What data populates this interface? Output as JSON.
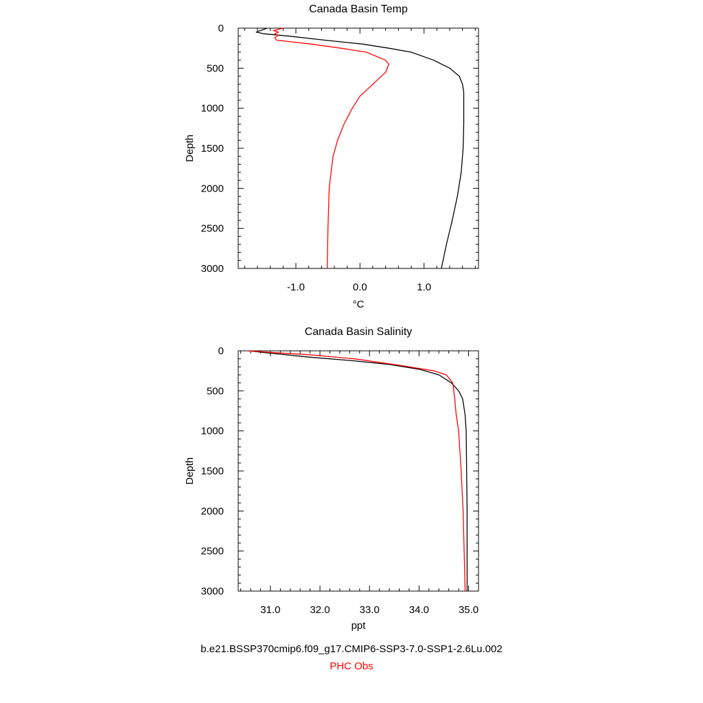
{
  "colors": {
    "model": "#000000",
    "obs": "#ff0000",
    "axis": "#000000",
    "background": "#ffffff"
  },
  "legend": {
    "model_label": "b.e21.BSSP370cmip6.f09_g17.CMIP6-SSP3-7.0-SSP1-2.6Lu.002",
    "obs_label": "PHC Obs"
  },
  "chart_data": [
    {
      "type": "line",
      "title": "Canada Basin Temp",
      "xlabel": "°C",
      "ylabel": "Depth",
      "xlim": [
        -1.9,
        1.85
      ],
      "ylim": [
        3000,
        0
      ],
      "xticks": [
        -1.0,
        0.0,
        1.0
      ],
      "xtick_labels": [
        "-1.0",
        "0.0",
        "1.0"
      ],
      "yticks": [
        0,
        500,
        1000,
        1500,
        2000,
        2500,
        3000
      ],
      "ytick_labels": [
        "0",
        "500",
        "1000",
        "1500",
        "2000",
        "2500",
        "3000"
      ],
      "grid": false,
      "series": [
        {
          "name": "b.e21.BSSP370cmip6.f09_g17.CMIP6-SSP3-7.0-SSP1-2.6Lu.002",
          "color": "#000000",
          "points": [
            [
              -1.45,
              0
            ],
            [
              -1.62,
              50
            ],
            [
              -1.5,
              70
            ],
            [
              -1.1,
              100
            ],
            [
              -0.55,
              150
            ],
            [
              0.05,
              200
            ],
            [
              0.45,
              250
            ],
            [
              0.8,
              300
            ],
            [
              1.15,
              400
            ],
            [
              1.4,
              500
            ],
            [
              1.55,
              600
            ],
            [
              1.6,
              700
            ],
            [
              1.62,
              800
            ],
            [
              1.62,
              1000
            ],
            [
              1.62,
              1200
            ],
            [
              1.61,
              1500
            ],
            [
              1.58,
              1800
            ],
            [
              1.52,
              2100
            ],
            [
              1.44,
              2400
            ],
            [
              1.35,
              2700
            ],
            [
              1.27,
              3000
            ]
          ]
        },
        {
          "name": "PHC Obs",
          "color": "#ff0000",
          "points": [
            [
              -1.2,
              0
            ],
            [
              -1.35,
              30
            ],
            [
              -1.27,
              50
            ],
            [
              -1.33,
              70
            ],
            [
              -1.28,
              90
            ],
            [
              -1.33,
              120
            ],
            [
              -1.3,
              150
            ],
            [
              -0.75,
              200
            ],
            [
              -0.3,
              250
            ],
            [
              0.1,
              300
            ],
            [
              0.4,
              400
            ],
            [
              0.45,
              450
            ],
            [
              0.4,
              550
            ],
            [
              0.2,
              700
            ],
            [
              0.0,
              850
            ],
            [
              -0.12,
              1000
            ],
            [
              -0.25,
              1200
            ],
            [
              -0.35,
              1400
            ],
            [
              -0.42,
              1600
            ],
            [
              -0.45,
              1800
            ],
            [
              -0.48,
              2000
            ],
            [
              -0.5,
              2500
            ],
            [
              -0.51,
              3000
            ]
          ]
        }
      ]
    },
    {
      "type": "line",
      "title": "Canada Basin Salinity",
      "xlabel": "ppt",
      "ylabel": "Depth",
      "xlim": [
        30.35,
        35.2
      ],
      "ylim": [
        3000,
        0
      ],
      "xticks": [
        31.0,
        32.0,
        33.0,
        34.0,
        35.0
      ],
      "xtick_labels": [
        "31.0",
        "32.0",
        "33.0",
        "34.0",
        "35.0"
      ],
      "yticks": [
        0,
        500,
        1000,
        1500,
        2000,
        2500,
        3000
      ],
      "ytick_labels": [
        "0",
        "500",
        "1000",
        "1500",
        "2000",
        "2500",
        "3000"
      ],
      "grid": false,
      "series": [
        {
          "name": "b.e21.BSSP370cmip6.f09_g17.CMIP6-SSP3-7.0-SSP1-2.6Lu.002",
          "color": "#000000",
          "points": [
            [
              30.55,
              0
            ],
            [
              31.0,
              30
            ],
            [
              31.8,
              80
            ],
            [
              32.6,
              120
            ],
            [
              33.4,
              170
            ],
            [
              34.0,
              230
            ],
            [
              34.4,
              300
            ],
            [
              34.65,
              400
            ],
            [
              34.8,
              500
            ],
            [
              34.88,
              600
            ],
            [
              34.93,
              800
            ],
            [
              34.95,
              1000
            ],
            [
              34.96,
              1500
            ],
            [
              34.97,
              2000
            ],
            [
              34.97,
              2500
            ],
            [
              34.97,
              3000
            ]
          ]
        },
        {
          "name": "PHC Obs",
          "color": "#ff0000",
          "points": [
            [
              30.55,
              0
            ],
            [
              31.0,
              20
            ],
            [
              31.8,
              50
            ],
            [
              32.7,
              100
            ],
            [
              33.6,
              180
            ],
            [
              34.3,
              250
            ],
            [
              34.55,
              300
            ],
            [
              34.68,
              400
            ],
            [
              34.72,
              600
            ],
            [
              34.75,
              800
            ],
            [
              34.8,
              1000
            ],
            [
              34.85,
              1500
            ],
            [
              34.89,
              2000
            ],
            [
              34.91,
              2500
            ],
            [
              34.93,
              3000
            ]
          ]
        }
      ]
    }
  ]
}
